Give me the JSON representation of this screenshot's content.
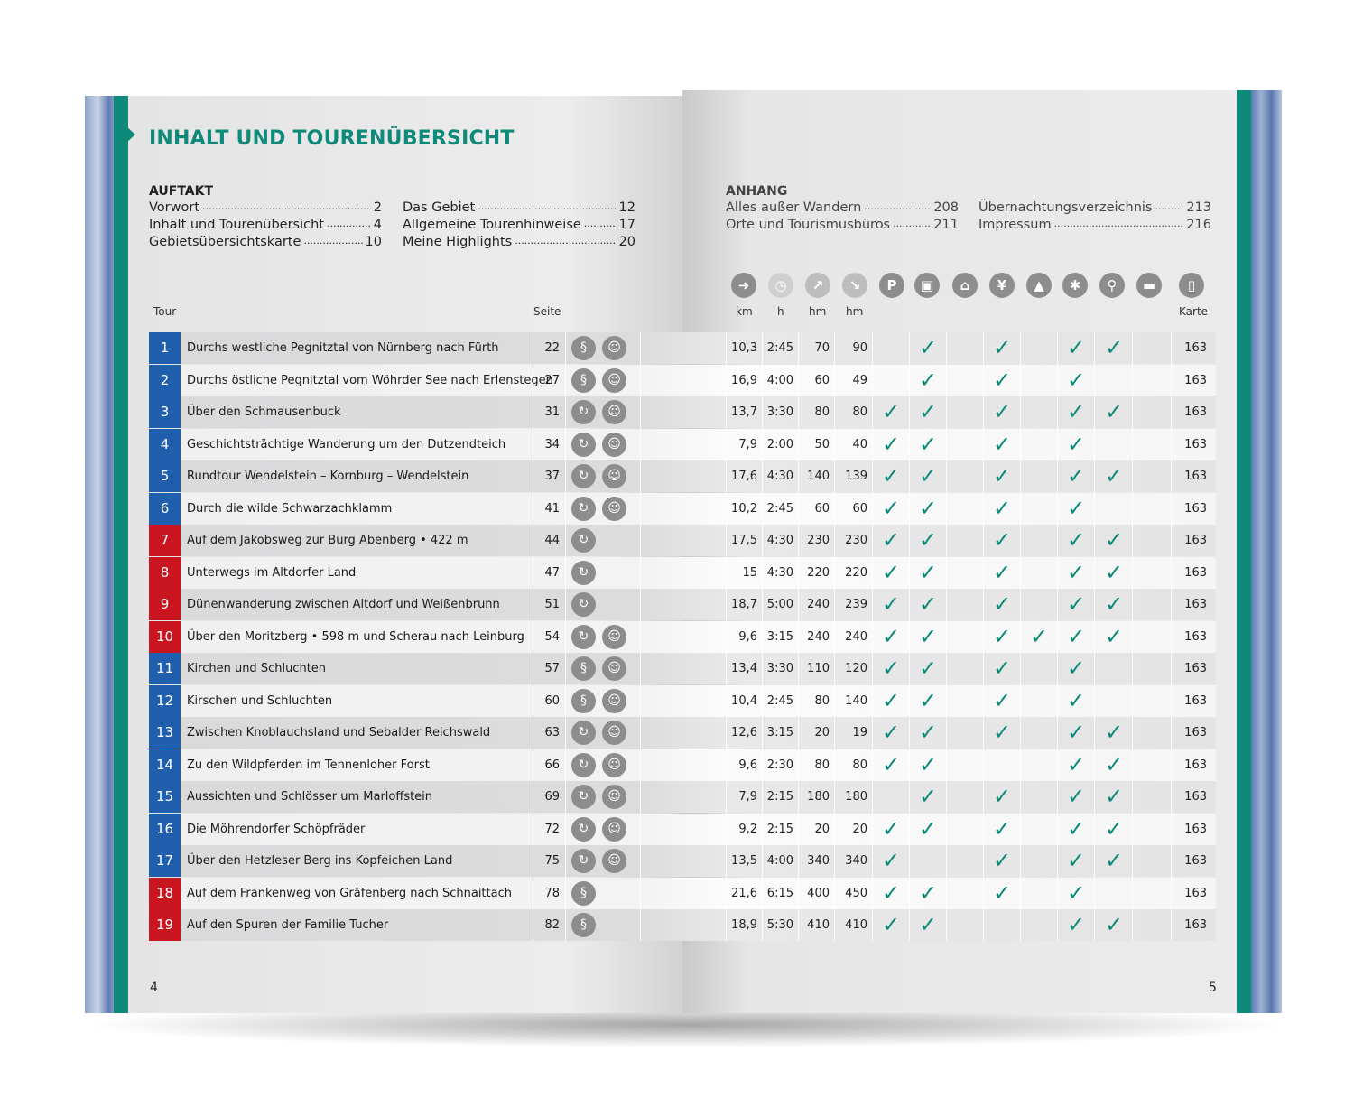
{
  "title": "INHALT UND TOURENÜBERSICHT",
  "auftakt": {
    "heading": "AUFTAKT",
    "col1": [
      {
        "label": "Vorwort",
        "page": "2"
      },
      {
        "label": "Inhalt und Tourenübersicht",
        "page": "4"
      },
      {
        "label": "Gebietsübersichtskarte",
        "page": "10"
      }
    ],
    "col2": [
      {
        "label": "Das Gebiet",
        "page": "12"
      },
      {
        "label": "Allgemeine Tourenhinweise",
        "page": "17"
      },
      {
        "label": "Meine Highlights",
        "page": "20"
      }
    ]
  },
  "anhang": {
    "heading": "ANHANG",
    "col1": [
      {
        "label": "Alles außer Wandern",
        "page": "208"
      },
      {
        "label": "Orte und Tourismusbüros",
        "page": "211"
      }
    ],
    "col2": [
      {
        "label": "Übernachtungsverzeichnis",
        "page": "213"
      },
      {
        "label": "Impressum",
        "page": "216"
      }
    ]
  },
  "columns": {
    "tour": "Tour",
    "seite": "Seite",
    "km": "km",
    "h": "h",
    "hm_up": "hm",
    "hm_down": "hm",
    "karte": "Karte"
  },
  "header_icons": [
    "signpost-icon",
    "clock-icon",
    "ascent-icon",
    "descent-icon",
    "parking-icon",
    "bus-icon",
    "cable-car-icon",
    "restaurant-icon",
    "hut-icon",
    "winter-icon",
    "bike-icon",
    "bed-icon",
    "map-icon"
  ],
  "colors": {
    "accent": "#0e8a7a",
    "blue": "#1f5fae",
    "red": "#c8151f"
  },
  "tours": [
    {
      "n": "1",
      "color": "blue",
      "name": "Durchs westliche Pegnitztal von Nürnberg nach Fürth",
      "seite": "22",
      "icons": [
        "route",
        "kids"
      ],
      "km": "10,3",
      "h": "2:45",
      "up": "70",
      "down": "90",
      "checks": [
        0,
        1,
        0,
        1,
        0,
        1,
        1,
        0
      ],
      "karte": "163"
    },
    {
      "n": "2",
      "color": "blue",
      "name": "Durchs östliche Pegnitztal vom Wöhrder See nach Erlenstegen",
      "seite": "27",
      "icons": [
        "route",
        "kids"
      ],
      "km": "16,9",
      "h": "4:00",
      "up": "60",
      "down": "49",
      "checks": [
        0,
        1,
        0,
        1,
        0,
        1,
        0,
        0
      ],
      "karte": "163"
    },
    {
      "n": "3",
      "color": "blue",
      "name": "Über den Schmausenbuck",
      "seite": "31",
      "icons": [
        "loop",
        "kids"
      ],
      "km": "13,7",
      "h": "3:30",
      "up": "80",
      "down": "80",
      "checks": [
        1,
        1,
        0,
        1,
        0,
        1,
        1,
        0
      ],
      "karte": "163"
    },
    {
      "n": "4",
      "color": "blue",
      "name": "Geschichtsträchtige Wanderung um den Dutzendteich",
      "seite": "34",
      "icons": [
        "loop",
        "kids"
      ],
      "km": "7,9",
      "h": "2:00",
      "up": "50",
      "down": "40",
      "checks": [
        1,
        1,
        0,
        1,
        0,
        1,
        0,
        0
      ],
      "karte": "163"
    },
    {
      "n": "5",
      "color": "blue",
      "name": "Rundtour Wendelstein – Kornburg – Wendelstein",
      "seite": "37",
      "icons": [
        "loop",
        "kids"
      ],
      "km": "17,6",
      "h": "4:30",
      "up": "140",
      "down": "139",
      "checks": [
        1,
        1,
        0,
        1,
        0,
        1,
        1,
        0
      ],
      "karte": "163"
    },
    {
      "n": "6",
      "color": "blue",
      "name": "Durch die wilde Schwarzachklamm",
      "seite": "41",
      "icons": [
        "loop",
        "kids"
      ],
      "km": "10,2",
      "h": "2:45",
      "up": "60",
      "down": "60",
      "checks": [
        1,
        1,
        0,
        1,
        0,
        1,
        0,
        0
      ],
      "karte": "163"
    },
    {
      "n": "7",
      "color": "red",
      "name": "Auf dem Jakobsweg zur Burg Abenberg  • 422 m",
      "seite": "44",
      "icons": [
        "loop"
      ],
      "km": "17,5",
      "h": "4:30",
      "up": "230",
      "down": "230",
      "checks": [
        1,
        1,
        0,
        1,
        0,
        1,
        1,
        0
      ],
      "karte": "163"
    },
    {
      "n": "8",
      "color": "red",
      "name": "Unterwegs im Altdorfer Land",
      "seite": "47",
      "icons": [
        "loop"
      ],
      "km": "15",
      "h": "4:30",
      "up": "220",
      "down": "220",
      "checks": [
        1,
        1,
        0,
        1,
        0,
        1,
        1,
        0
      ],
      "karte": "163"
    },
    {
      "n": "9",
      "color": "red",
      "name": "Dünenwanderung zwischen Altdorf und Weißenbrunn",
      "seite": "51",
      "icons": [
        "loop"
      ],
      "km": "18,7",
      "h": "5:00",
      "up": "240",
      "down": "239",
      "checks": [
        1,
        1,
        0,
        1,
        0,
        1,
        1,
        0
      ],
      "karte": "163"
    },
    {
      "n": "10",
      "color": "red",
      "name": "Über den Moritzberg • 598 m und Scherau nach Leinburg",
      "seite": "54",
      "icons": [
        "loop",
        "kids"
      ],
      "km": "9,6",
      "h": "3:15",
      "up": "240",
      "down": "240",
      "checks": [
        1,
        1,
        0,
        1,
        1,
        1,
        1,
        0
      ],
      "karte": "163"
    },
    {
      "n": "11",
      "color": "blue",
      "name": "Kirchen und Schluchten",
      "seite": "57",
      "icons": [
        "route",
        "kids"
      ],
      "km": "13,4",
      "h": "3:30",
      "up": "110",
      "down": "120",
      "checks": [
        1,
        1,
        0,
        1,
        0,
        1,
        0,
        0
      ],
      "karte": "163"
    },
    {
      "n": "12",
      "color": "blue",
      "name": "Kirschen und Schluchten",
      "seite": "60",
      "icons": [
        "route",
        "kids"
      ],
      "km": "10,4",
      "h": "2:45",
      "up": "80",
      "down": "140",
      "checks": [
        1,
        1,
        0,
        1,
        0,
        1,
        0,
        0
      ],
      "karte": "163"
    },
    {
      "n": "13",
      "color": "blue",
      "name": "Zwischen Knoblauchsland und Sebalder Reichswald",
      "seite": "63",
      "icons": [
        "loop",
        "kids"
      ],
      "km": "12,6",
      "h": "3:15",
      "up": "20",
      "down": "19",
      "checks": [
        1,
        1,
        0,
        1,
        0,
        1,
        1,
        0
      ],
      "karte": "163"
    },
    {
      "n": "14",
      "color": "blue",
      "name": "Zu den Wildpferden im Tennenloher Forst",
      "seite": "66",
      "icons": [
        "loop",
        "kids"
      ],
      "km": "9,6",
      "h": "2:30",
      "up": "80",
      "down": "80",
      "checks": [
        1,
        1,
        0,
        0,
        0,
        1,
        1,
        0
      ],
      "karte": "163"
    },
    {
      "n": "15",
      "color": "blue",
      "name": "Aussichten und Schlösser um Marloffstein",
      "seite": "69",
      "icons": [
        "loop",
        "kids"
      ],
      "km": "7,9",
      "h": "2:15",
      "up": "180",
      "down": "180",
      "checks": [
        0,
        1,
        0,
        1,
        0,
        1,
        1,
        0
      ],
      "karte": "163"
    },
    {
      "n": "16",
      "color": "blue",
      "name": "Die Möhrendorfer Schöpfräder",
      "seite": "72",
      "icons": [
        "loop",
        "kids"
      ],
      "km": "9,2",
      "h": "2:15",
      "up": "20",
      "down": "20",
      "checks": [
        1,
        1,
        0,
        1,
        0,
        1,
        1,
        0
      ],
      "karte": "163"
    },
    {
      "n": "17",
      "color": "blue",
      "name": "Über den Hetzleser Berg ins Kopfeichen Land",
      "seite": "75",
      "icons": [
        "loop",
        "kids"
      ],
      "km": "13,5",
      "h": "4:00",
      "up": "340",
      "down": "340",
      "checks": [
        1,
        0,
        0,
        1,
        0,
        1,
        1,
        0
      ],
      "karte": "163"
    },
    {
      "n": "18",
      "color": "red",
      "name": "Auf dem Frankenweg von Gräfenberg nach Schnaittach",
      "seite": "78",
      "icons": [
        "route"
      ],
      "km": "21,6",
      "h": "6:15",
      "up": "400",
      "down": "450",
      "checks": [
        1,
        1,
        0,
        1,
        0,
        1,
        0,
        0
      ],
      "karte": "163"
    },
    {
      "n": "19",
      "color": "red",
      "name": "Auf den Spuren der Familie Tucher",
      "seite": "82",
      "icons": [
        "route"
      ],
      "km": "18,9",
      "h": "5:30",
      "up": "410",
      "down": "410",
      "checks": [
        1,
        1,
        0,
        0,
        0,
        1,
        1,
        0
      ],
      "karte": "163"
    }
  ],
  "page_left": "4",
  "page_right": "5"
}
